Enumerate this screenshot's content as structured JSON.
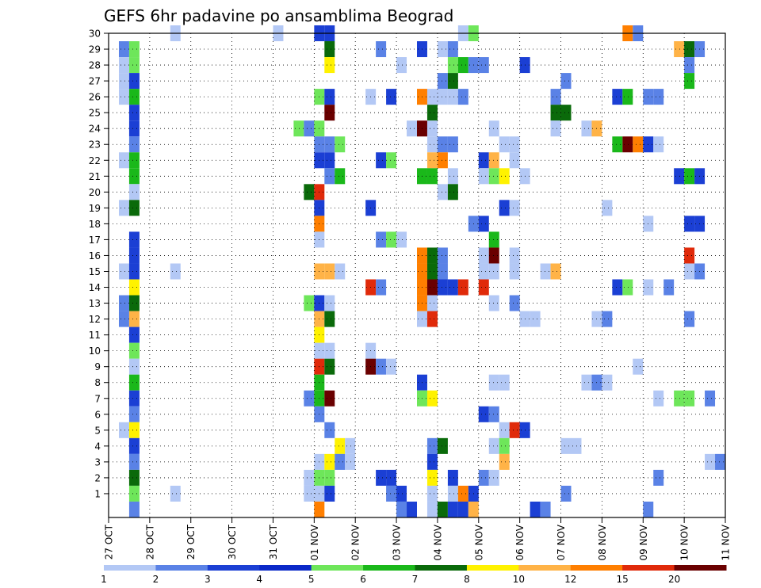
{
  "chart_data": {
    "type": "heatmap",
    "title": "GEFS 6hr padavine po ansamblima Beograd",
    "x_ticks": [
      "27 OCT",
      "28 OCT",
      "29 OCT",
      "30 OCT",
      "31 OCT",
      "01 NOV",
      "02 NOV",
      "03 NOV",
      "04 NOV",
      "05 NOV",
      "06 NOV",
      "07 NOV",
      "08 NOV",
      "09 NOV",
      "10 NOV",
      "11 NOV"
    ],
    "y_ticks": [
      "1",
      "2",
      "3",
      "4",
      "5",
      "6",
      "7",
      "8",
      "9",
      "10",
      "11",
      "12",
      "13",
      "14",
      "15",
      "16",
      "17",
      "18",
      "19",
      "20",
      "21",
      "22",
      "23",
      "24",
      "25",
      "26",
      "27",
      "28",
      "29",
      "30"
    ],
    "grid": true,
    "colorbar": {
      "tick_labels": [
        "1",
        "2",
        "3",
        "4",
        "5",
        "6",
        "7",
        "8",
        "10",
        "12",
        "15",
        "20"
      ],
      "colors": [
        "#b3c8f5",
        "#5a82e6",
        "#1b3fd4",
        "#0a28c8",
        "#6ee65a",
        "#1ab81a",
        "#0a6a0a",
        "#fff200",
        "#ffb347",
        "#ff7f00",
        "#e02a0a",
        "#6a0000"
      ]
    },
    "ensemble_members": 30,
    "steps_per_day": 4,
    "cells": [
      {
        "m": 30,
        "t": 6,
        "v": 1
      },
      {
        "m": 30,
        "t": 16,
        "v": 1
      },
      {
        "m": 30,
        "t": 20,
        "v": 3
      },
      {
        "m": 30,
        "t": 21,
        "v": 3
      },
      {
        "m": 30,
        "t": 34,
        "v": 1
      },
      {
        "m": 30,
        "t": 35,
        "v": 5
      },
      {
        "m": 30,
        "t": 50,
        "v": 12
      },
      {
        "m": 30,
        "t": 51,
        "v": 2
      },
      {
        "m": 29,
        "t": 1,
        "v": 2
      },
      {
        "m": 29,
        "t": 2,
        "v": 5
      },
      {
        "m": 29,
        "t": 21,
        "v": 7
      },
      {
        "m": 29,
        "t": 26,
        "v": 2
      },
      {
        "m": 29,
        "t": 30,
        "v": 3
      },
      {
        "m": 29,
        "t": 32,
        "v": 1
      },
      {
        "m": 29,
        "t": 33,
        "v": 2
      },
      {
        "m": 29,
        "t": 55,
        "v": 10
      },
      {
        "m": 29,
        "t": 56,
        "v": 7
      },
      {
        "m": 29,
        "t": 57,
        "v": 2
      },
      {
        "m": 28,
        "t": 1,
        "v": 1
      },
      {
        "m": 28,
        "t": 2,
        "v": 5
      },
      {
        "m": 28,
        "t": 21,
        "v": 8
      },
      {
        "m": 28,
        "t": 28,
        "v": 1
      },
      {
        "m": 28,
        "t": 33,
        "v": 5
      },
      {
        "m": 28,
        "t": 34,
        "v": 6
      },
      {
        "m": 28,
        "t": 35,
        "v": 2
      },
      {
        "m": 28,
        "t": 36,
        "v": 2
      },
      {
        "m": 28,
        "t": 40,
        "v": 3
      },
      {
        "m": 28,
        "t": 56,
        "v": 2
      },
      {
        "m": 27,
        "t": 1,
        "v": 1
      },
      {
        "m": 27,
        "t": 2,
        "v": 3
      },
      {
        "m": 27,
        "t": 32,
        "v": 2
      },
      {
        "m": 27,
        "t": 33,
        "v": 7
      },
      {
        "m": 27,
        "t": 44,
        "v": 2
      },
      {
        "m": 27,
        "t": 56,
        "v": 6
      },
      {
        "m": 26,
        "t": 1,
        "v": 1
      },
      {
        "m": 26,
        "t": 2,
        "v": 6
      },
      {
        "m": 26,
        "t": 20,
        "v": 5
      },
      {
        "m": 26,
        "t": 21,
        "v": 3
      },
      {
        "m": 26,
        "t": 25,
        "v": 1
      },
      {
        "m": 26,
        "t": 27,
        "v": 3
      },
      {
        "m": 26,
        "t": 30,
        "v": 12
      },
      {
        "m": 26,
        "t": 31,
        "v": 1
      },
      {
        "m": 26,
        "t": 32,
        "v": 1
      },
      {
        "m": 26,
        "t": 33,
        "v": 1
      },
      {
        "m": 26,
        "t": 34,
        "v": 2
      },
      {
        "m": 26,
        "t": 43,
        "v": 2
      },
      {
        "m": 26,
        "t": 49,
        "v": 3
      },
      {
        "m": 26,
        "t": 50,
        "v": 6
      },
      {
        "m": 26,
        "t": 52,
        "v": 2
      },
      {
        "m": 26,
        "t": 53,
        "v": 2
      },
      {
        "m": 25,
        "t": 2,
        "v": 3
      },
      {
        "m": 25,
        "t": 21,
        "v": 20
      },
      {
        "m": 25,
        "t": 31,
        "v": 7
      },
      {
        "m": 25,
        "t": 43,
        "v": 7
      },
      {
        "m": 25,
        "t": 44,
        "v": 7
      },
      {
        "m": 24,
        "t": 2,
        "v": 3
      },
      {
        "m": 24,
        "t": 18,
        "v": 5
      },
      {
        "m": 24,
        "t": 19,
        "v": 2
      },
      {
        "m": 24,
        "t": 20,
        "v": 5
      },
      {
        "m": 24,
        "t": 29,
        "v": 1
      },
      {
        "m": 24,
        "t": 30,
        "v": 20
      },
      {
        "m": 24,
        "t": 31,
        "v": 1
      },
      {
        "m": 24,
        "t": 37,
        "v": 1
      },
      {
        "m": 24,
        "t": 43,
        "v": 1
      },
      {
        "m": 24,
        "t": 46,
        "v": 1
      },
      {
        "m": 24,
        "t": 47,
        "v": 10
      },
      {
        "m": 23,
        "t": 2,
        "v": 2
      },
      {
        "m": 23,
        "t": 20,
        "v": 2
      },
      {
        "m": 23,
        "t": 21,
        "v": 2
      },
      {
        "m": 23,
        "t": 22,
        "v": 5
      },
      {
        "m": 23,
        "t": 31,
        "v": 1
      },
      {
        "m": 23,
        "t": 32,
        "v": 2
      },
      {
        "m": 23,
        "t": 33,
        "v": 2
      },
      {
        "m": 23,
        "t": 38,
        "v": 1
      },
      {
        "m": 23,
        "t": 39,
        "v": 1
      },
      {
        "m": 23,
        "t": 49,
        "v": 6
      },
      {
        "m": 23,
        "t": 50,
        "v": 20
      },
      {
        "m": 23,
        "t": 51,
        "v": 12
      },
      {
        "m": 23,
        "t": 52,
        "v": 3
      },
      {
        "m": 23,
        "t": 53,
        "v": 1
      },
      {
        "m": 22,
        "t": 1,
        "v": 1
      },
      {
        "m": 22,
        "t": 2,
        "v": 6
      },
      {
        "m": 22,
        "t": 20,
        "v": 3
      },
      {
        "m": 22,
        "t": 21,
        "v": 3
      },
      {
        "m": 22,
        "t": 26,
        "v": 3
      },
      {
        "m": 22,
        "t": 27,
        "v": 5
      },
      {
        "m": 22,
        "t": 31,
        "v": 10
      },
      {
        "m": 22,
        "t": 32,
        "v": 12
      },
      {
        "m": 22,
        "t": 36,
        "v": 3
      },
      {
        "m": 22,
        "t": 37,
        "v": 10
      },
      {
        "m": 22,
        "t": 39,
        "v": 1
      },
      {
        "m": 21,
        "t": 2,
        "v": 6
      },
      {
        "m": 21,
        "t": 21,
        "v": 2
      },
      {
        "m": 21,
        "t": 22,
        "v": 6
      },
      {
        "m": 21,
        "t": 30,
        "v": 6
      },
      {
        "m": 21,
        "t": 31,
        "v": 6
      },
      {
        "m": 21,
        "t": 33,
        "v": 1
      },
      {
        "m": 21,
        "t": 36,
        "v": 1
      },
      {
        "m": 21,
        "t": 37,
        "v": 5
      },
      {
        "m": 21,
        "t": 38,
        "v": 8
      },
      {
        "m": 21,
        "t": 40,
        "v": 1
      },
      {
        "m": 21,
        "t": 55,
        "v": 3
      },
      {
        "m": 21,
        "t": 56,
        "v": 6
      },
      {
        "m": 21,
        "t": 57,
        "v": 3
      },
      {
        "m": 20,
        "t": 2,
        "v": 1
      },
      {
        "m": 20,
        "t": 19,
        "v": 7
      },
      {
        "m": 20,
        "t": 20,
        "v": 15
      },
      {
        "m": 20,
        "t": 32,
        "v": 1
      },
      {
        "m": 20,
        "t": 33,
        "v": 7
      },
      {
        "m": 19,
        "t": 1,
        "v": 1
      },
      {
        "m": 19,
        "t": 2,
        "v": 7
      },
      {
        "m": 19,
        "t": 20,
        "v": 3
      },
      {
        "m": 19,
        "t": 25,
        "v": 3
      },
      {
        "m": 19,
        "t": 38,
        "v": 3
      },
      {
        "m": 19,
        "t": 39,
        "v": 1
      },
      {
        "m": 19,
        "t": 48,
        "v": 1
      },
      {
        "m": 18,
        "t": 20,
        "v": 12
      },
      {
        "m": 18,
        "t": 35,
        "v": 2
      },
      {
        "m": 18,
        "t": 36,
        "v": 3
      },
      {
        "m": 18,
        "t": 52,
        "v": 1
      },
      {
        "m": 18,
        "t": 56,
        "v": 3
      },
      {
        "m": 18,
        "t": 57,
        "v": 3
      },
      {
        "m": 17,
        "t": 2,
        "v": 3
      },
      {
        "m": 17,
        "t": 20,
        "v": 1
      },
      {
        "m": 17,
        "t": 26,
        "v": 2
      },
      {
        "m": 17,
        "t": 27,
        "v": 5
      },
      {
        "m": 17,
        "t": 28,
        "v": 1
      },
      {
        "m": 17,
        "t": 37,
        "v": 6
      },
      {
        "m": 16,
        "t": 2,
        "v": 3
      },
      {
        "m": 16,
        "t": 30,
        "v": 12
      },
      {
        "m": 16,
        "t": 31,
        "v": 7
      },
      {
        "m": 16,
        "t": 32,
        "v": 2
      },
      {
        "m": 16,
        "t": 36,
        "v": 1
      },
      {
        "m": 16,
        "t": 37,
        "v": 20
      },
      {
        "m": 16,
        "t": 39,
        "v": 1
      },
      {
        "m": 16,
        "t": 56,
        "v": 15
      },
      {
        "m": 15,
        "t": 1,
        "v": 1
      },
      {
        "m": 15,
        "t": 2,
        "v": 3
      },
      {
        "m": 15,
        "t": 6,
        "v": 1
      },
      {
        "m": 15,
        "t": 20,
        "v": 10
      },
      {
        "m": 15,
        "t": 21,
        "v": 10
      },
      {
        "m": 15,
        "t": 22,
        "v": 1
      },
      {
        "m": 15,
        "t": 30,
        "v": 12
      },
      {
        "m": 15,
        "t": 31,
        "v": 7
      },
      {
        "m": 15,
        "t": 32,
        "v": 2
      },
      {
        "m": 15,
        "t": 36,
        "v": 1
      },
      {
        "m": 15,
        "t": 37,
        "v": 1
      },
      {
        "m": 15,
        "t": 39,
        "v": 1
      },
      {
        "m": 15,
        "t": 42,
        "v": 1
      },
      {
        "m": 15,
        "t": 43,
        "v": 10
      },
      {
        "m": 15,
        "t": 56,
        "v": 1
      },
      {
        "m": 15,
        "t": 57,
        "v": 2
      },
      {
        "m": 14,
        "t": 2,
        "v": 8
      },
      {
        "m": 14,
        "t": 25,
        "v": 15
      },
      {
        "m": 14,
        "t": 26,
        "v": 2
      },
      {
        "m": 14,
        "t": 30,
        "v": 12
      },
      {
        "m": 14,
        "t": 31,
        "v": 20
      },
      {
        "m": 14,
        "t": 32,
        "v": 3
      },
      {
        "m": 14,
        "t": 33,
        "v": 3
      },
      {
        "m": 14,
        "t": 34,
        "v": 15
      },
      {
        "m": 14,
        "t": 36,
        "v": 15
      },
      {
        "m": 14,
        "t": 49,
        "v": 3
      },
      {
        "m": 14,
        "t": 50,
        "v": 5
      },
      {
        "m": 14,
        "t": 52,
        "v": 1
      },
      {
        "m": 14,
        "t": 54,
        "v": 2
      },
      {
        "m": 13,
        "t": 1,
        "v": 2
      },
      {
        "m": 13,
        "t": 2,
        "v": 7
      },
      {
        "m": 13,
        "t": 19,
        "v": 5
      },
      {
        "m": 13,
        "t": 20,
        "v": 3
      },
      {
        "m": 13,
        "t": 21,
        "v": 1
      },
      {
        "m": 13,
        "t": 30,
        "v": 12
      },
      {
        "m": 13,
        "t": 31,
        "v": 1
      },
      {
        "m": 13,
        "t": 37,
        "v": 1
      },
      {
        "m": 13,
        "t": 39,
        "v": 2
      },
      {
        "m": 12,
        "t": 1,
        "v": 2
      },
      {
        "m": 12,
        "t": 2,
        "v": 10
      },
      {
        "m": 12,
        "t": 20,
        "v": 10
      },
      {
        "m": 12,
        "t": 21,
        "v": 7
      },
      {
        "m": 12,
        "t": 30,
        "v": 1
      },
      {
        "m": 12,
        "t": 31,
        "v": 15
      },
      {
        "m": 12,
        "t": 40,
        "v": 1
      },
      {
        "m": 12,
        "t": 41,
        "v": 1
      },
      {
        "m": 12,
        "t": 47,
        "v": 1
      },
      {
        "m": 12,
        "t": 48,
        "v": 2
      },
      {
        "m": 12,
        "t": 56,
        "v": 2
      },
      {
        "m": 11,
        "t": 2,
        "v": 3
      },
      {
        "m": 11,
        "t": 20,
        "v": 8
      },
      {
        "m": 10,
        "t": 2,
        "v": 5
      },
      {
        "m": 10,
        "t": 20,
        "v": 1
      },
      {
        "m": 10,
        "t": 21,
        "v": 1
      },
      {
        "m": 10,
        "t": 25,
        "v": 1
      },
      {
        "m": 9,
        "t": 2,
        "v": 1
      },
      {
        "m": 9,
        "t": 20,
        "v": 15
      },
      {
        "m": 9,
        "t": 21,
        "v": 7
      },
      {
        "m": 9,
        "t": 25,
        "v": 20
      },
      {
        "m": 9,
        "t": 26,
        "v": 2
      },
      {
        "m": 9,
        "t": 27,
        "v": 1
      },
      {
        "m": 9,
        "t": 51,
        "v": 1
      },
      {
        "m": 8,
        "t": 2,
        "v": 6
      },
      {
        "m": 8,
        "t": 20,
        "v": 6
      },
      {
        "m": 8,
        "t": 30,
        "v": 3
      },
      {
        "m": 8,
        "t": 37,
        "v": 1
      },
      {
        "m": 8,
        "t": 38,
        "v": 1
      },
      {
        "m": 8,
        "t": 46,
        "v": 1
      },
      {
        "m": 8,
        "t": 47,
        "v": 2
      },
      {
        "m": 8,
        "t": 48,
        "v": 1
      },
      {
        "m": 7,
        "t": 2,
        "v": 3
      },
      {
        "m": 7,
        "t": 19,
        "v": 2
      },
      {
        "m": 7,
        "t": 20,
        "v": 6
      },
      {
        "m": 7,
        "t": 21,
        "v": 20
      },
      {
        "m": 7,
        "t": 30,
        "v": 5
      },
      {
        "m": 7,
        "t": 31,
        "v": 8
      },
      {
        "m": 7,
        "t": 53,
        "v": 1
      },
      {
        "m": 7,
        "t": 55,
        "v": 5
      },
      {
        "m": 7,
        "t": 56,
        "v": 5
      },
      {
        "m": 7,
        "t": 58,
        "v": 2
      },
      {
        "m": 7,
        "t": 60,
        "v": 2
      },
      {
        "m": 6,
        "t": 2,
        "v": 2
      },
      {
        "m": 6,
        "t": 20,
        "v": 2
      },
      {
        "m": 6,
        "t": 36,
        "v": 3
      },
      {
        "m": 6,
        "t": 37,
        "v": 2
      },
      {
        "m": 5,
        "t": 1,
        "v": 1
      },
      {
        "m": 5,
        "t": 2,
        "v": 8
      },
      {
        "m": 5,
        "t": 21,
        "v": 2
      },
      {
        "m": 5,
        "t": 38,
        "v": 1
      },
      {
        "m": 5,
        "t": 39,
        "v": 15
      },
      {
        "m": 5,
        "t": 40,
        "v": 3
      },
      {
        "m": 4,
        "t": 2,
        "v": 3
      },
      {
        "m": 4,
        "t": 22,
        "v": 8
      },
      {
        "m": 4,
        "t": 23,
        "v": 1
      },
      {
        "m": 4,
        "t": 31,
        "v": 2
      },
      {
        "m": 4,
        "t": 32,
        "v": 7
      },
      {
        "m": 4,
        "t": 37,
        "v": 1
      },
      {
        "m": 4,
        "t": 38,
        "v": 5
      },
      {
        "m": 4,
        "t": 44,
        "v": 1
      },
      {
        "m": 4,
        "t": 45,
        "v": 1
      },
      {
        "m": 3,
        "t": 2,
        "v": 2
      },
      {
        "m": 3,
        "t": 20,
        "v": 1
      },
      {
        "m": 3,
        "t": 21,
        "v": 8
      },
      {
        "m": 3,
        "t": 22,
        "v": 2
      },
      {
        "m": 3,
        "t": 23,
        "v": 1
      },
      {
        "m": 3,
        "t": 31,
        "v": 3
      },
      {
        "m": 3,
        "t": 38,
        "v": 10
      },
      {
        "m": 3,
        "t": 58,
        "v": 1
      },
      {
        "m": 3,
        "t": 59,
        "v": 2
      },
      {
        "m": 2,
        "t": 2,
        "v": 7
      },
      {
        "m": 2,
        "t": 19,
        "v": 1
      },
      {
        "m": 2,
        "t": 20,
        "v": 5
      },
      {
        "m": 2,
        "t": 21,
        "v": 5
      },
      {
        "m": 2,
        "t": 26,
        "v": 3
      },
      {
        "m": 2,
        "t": 27,
        "v": 3
      },
      {
        "m": 2,
        "t": 31,
        "v": 8
      },
      {
        "m": 2,
        "t": 33,
        "v": 3
      },
      {
        "m": 2,
        "t": 36,
        "v": 2
      },
      {
        "m": 2,
        "t": 37,
        "v": 1
      },
      {
        "m": 2,
        "t": 53,
        "v": 2
      },
      {
        "m": 1,
        "t": 2,
        "v": 5
      },
      {
        "m": 1,
        "t": 6,
        "v": 1
      },
      {
        "m": 1,
        "t": 19,
        "v": 1
      },
      {
        "m": 1,
        "t": 20,
        "v": 1
      },
      {
        "m": 1,
        "t": 21,
        "v": 3
      },
      {
        "m": 1,
        "t": 27,
        "v": 2
      },
      {
        "m": 1,
        "t": 28,
        "v": 3
      },
      {
        "m": 1,
        "t": 31,
        "v": 1
      },
      {
        "m": 1,
        "t": 33,
        "v": 1
      },
      {
        "m": 1,
        "t": 34,
        "v": 12
      },
      {
        "m": 1,
        "t": 35,
        "v": 3
      },
      {
        "m": 1,
        "t": 44,
        "v": 2
      },
      {
        "m": 0,
        "t": 2,
        "v": 2
      },
      {
        "m": 0,
        "t": 20,
        "v": 12
      },
      {
        "m": 0,
        "t": 28,
        "v": 2
      },
      {
        "m": 0,
        "t": 29,
        "v": 3
      },
      {
        "m": 0,
        "t": 31,
        "v": 1
      },
      {
        "m": 0,
        "t": 32,
        "v": 7
      },
      {
        "m": 0,
        "t": 33,
        "v": 3
      },
      {
        "m": 0,
        "t": 34,
        "v": 3
      },
      {
        "m": 0,
        "t": 35,
        "v": 10
      },
      {
        "m": 0,
        "t": 41,
        "v": 3
      },
      {
        "m": 0,
        "t": 42,
        "v": 2
      },
      {
        "m": 0,
        "t": 52,
        "v": 2
      }
    ]
  }
}
